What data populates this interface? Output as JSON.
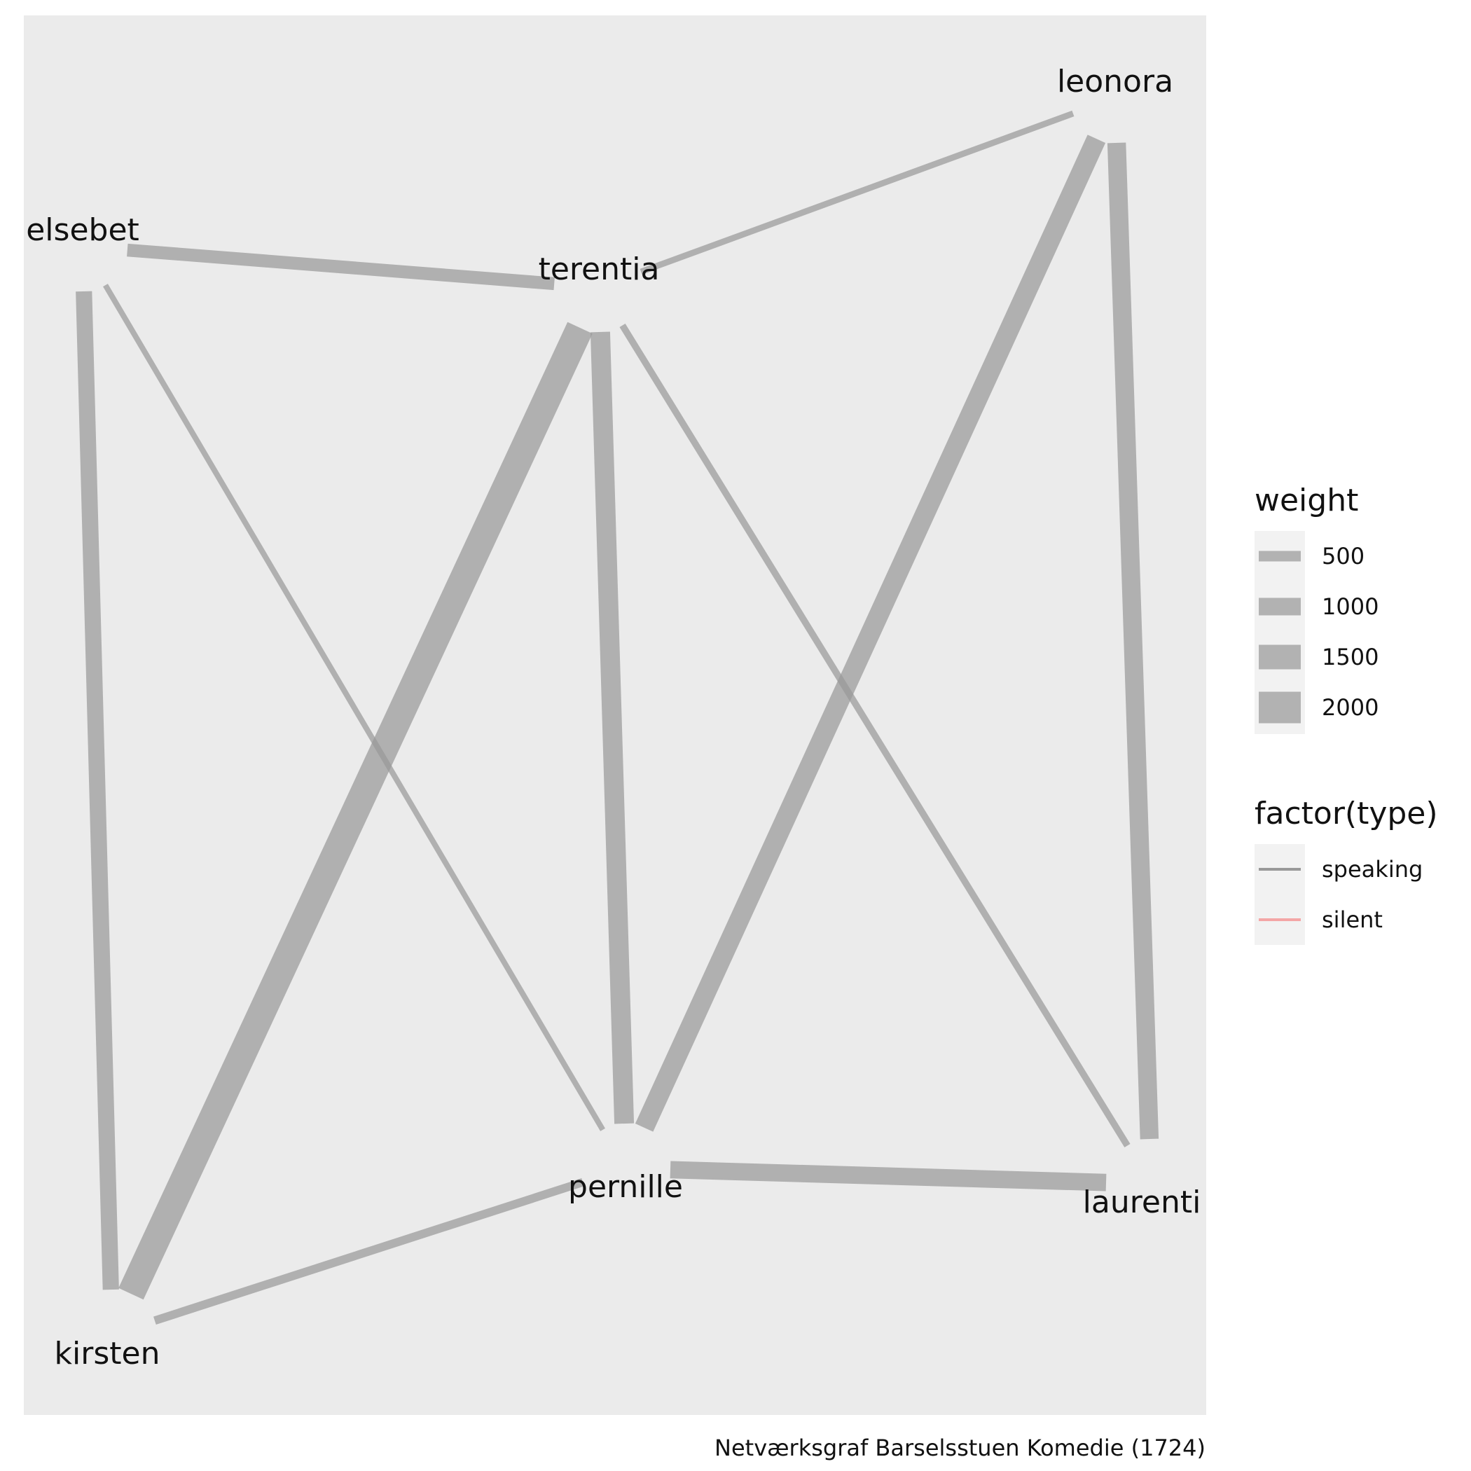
{
  "caption": "Netværksgraf Barselsstuen Komedie (1724)",
  "colors": {
    "panel_background": "#ebebeb",
    "legend_key_background": "#f2f2f2",
    "edge_speaking": "#999999",
    "edge_silent": "#f4a6a6"
  },
  "nodes": [
    {
      "id": "leonora",
      "label": "leonora"
    },
    {
      "id": "elsebet",
      "label": "elsebet"
    },
    {
      "id": "terentia",
      "label": "terentia"
    },
    {
      "id": "pernille",
      "label": "pernille"
    },
    {
      "id": "laurenti",
      "label": "laurenti"
    },
    {
      "id": "kirsten",
      "label": "kirsten"
    }
  ],
  "edges": [
    {
      "source": "terentia",
      "target": "kirsten",
      "weight": 2200,
      "type": "speaking"
    },
    {
      "source": "terentia",
      "target": "pernille",
      "weight": 1500,
      "type": "speaking"
    },
    {
      "source": "leonora",
      "target": "pernille",
      "weight": 1500,
      "type": "speaking"
    },
    {
      "source": "leonora",
      "target": "laurenti",
      "weight": 1400,
      "type": "speaking"
    },
    {
      "source": "elsebet",
      "target": "kirsten",
      "weight": 1200,
      "type": "speaking"
    },
    {
      "source": "pernille",
      "target": "laurenti",
      "weight": 1300,
      "type": "speaking"
    },
    {
      "source": "elsebet",
      "target": "terentia",
      "weight": 900,
      "type": "speaking"
    },
    {
      "source": "kirsten",
      "target": "pernille",
      "weight": 500,
      "type": "speaking"
    },
    {
      "source": "terentia",
      "target": "leonora",
      "weight": 300,
      "type": "speaking"
    },
    {
      "source": "elsebet",
      "target": "pernille",
      "weight": 250,
      "type": "speaking"
    },
    {
      "source": "terentia",
      "target": "laurenti",
      "weight": 350,
      "type": "speaking"
    }
  ],
  "legend": {
    "weight": {
      "title": "weight",
      "items": [
        {
          "label": "500",
          "value": 500
        },
        {
          "label": "1000",
          "value": 1000
        },
        {
          "label": "1500",
          "value": 1500
        },
        {
          "label": "2000",
          "value": 2000
        }
      ]
    },
    "type": {
      "title": "factor(type)",
      "items": [
        {
          "label": "speaking",
          "type": "speaking"
        },
        {
          "label": "silent",
          "type": "silent"
        }
      ]
    }
  }
}
